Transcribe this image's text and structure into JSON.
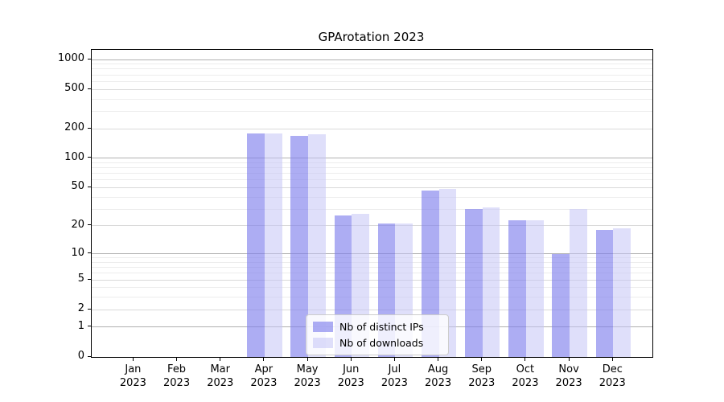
{
  "title": "GPArotation 2023",
  "chart_data": {
    "type": "bar",
    "title": "GPArotation 2023",
    "xlabel": "",
    "ylabel": "",
    "categories": [
      "Jan 2023",
      "Feb 2023",
      "Mar 2023",
      "Apr 2023",
      "May 2023",
      "Jun 2023",
      "Jul 2023",
      "Aug 2023",
      "Sep 2023",
      "Oct 2023",
      "Nov 2023",
      "Dec 2023"
    ],
    "series": [
      {
        "name": "Nb of distinct IPs",
        "color": "#aaaaf2",
        "fill": "rgba(125,125,236,0.63)",
        "values": [
          0,
          0,
          0,
          179,
          168,
          26,
          21,
          47,
          30,
          23,
          10,
          18
        ]
      },
      {
        "name": "Nb of downloads",
        "color": "#dbdbfa",
        "fill": "rgba(196,196,246,0.55)",
        "values": [
          0,
          0,
          0,
          180,
          175,
          27,
          21,
          49,
          31,
          23,
          30,
          19
        ]
      }
    ],
    "yscale": "log1p",
    "yticks": [
      0,
      1,
      2,
      5,
      10,
      20,
      50,
      100,
      200,
      500,
      1000
    ],
    "ylim": [
      0,
      1250
    ],
    "grid": "both",
    "legend_position": "lower center"
  },
  "colors": {
    "spine": "#000000",
    "grid_major": "#b0b0b0",
    "grid_medium": "#d9d9d9",
    "grid_minor": "#ededed",
    "legend_border": "#cccccc",
    "text": "#000000",
    "background": "#ffffff"
  }
}
